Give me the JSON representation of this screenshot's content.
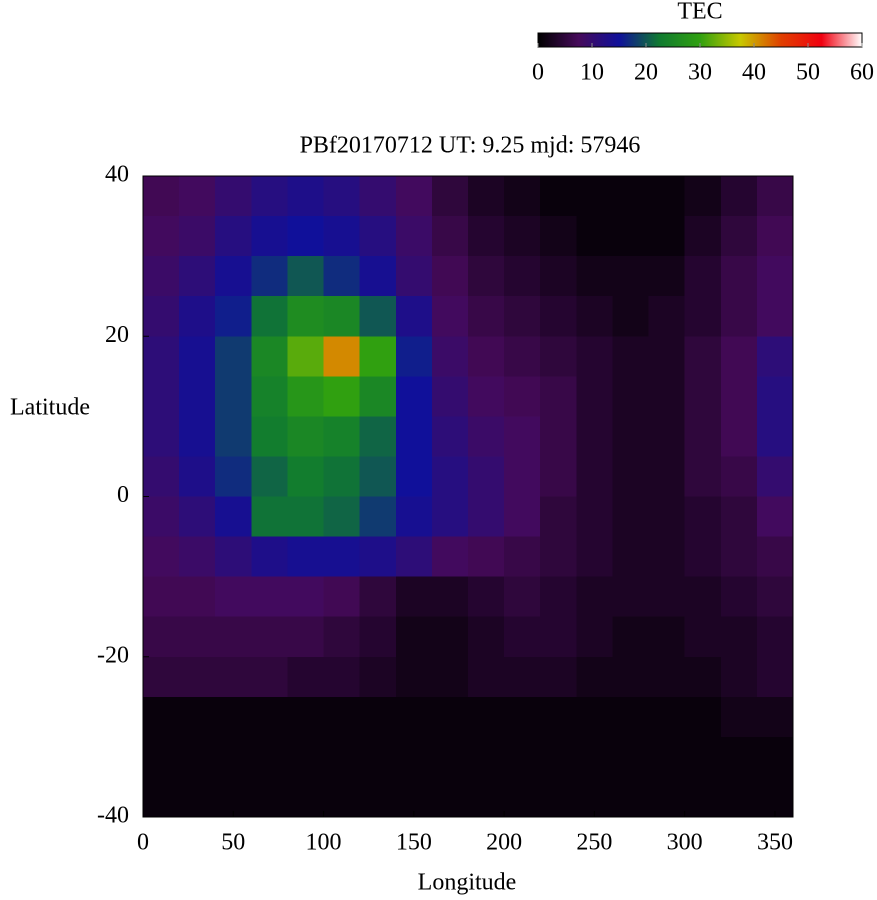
{
  "chart_data": {
    "type": "heatmap",
    "title": "PBf20170712  UT: 9.25  mjd: 57946",
    "xlabel": "Longitude",
    "ylabel": "Latitude",
    "x": [
      10,
      30,
      50,
      70,
      90,
      110,
      130,
      150,
      170,
      190,
      210,
      230,
      250,
      270,
      290,
      310,
      330,
      350
    ],
    "y": [
      37.5,
      32.5,
      27.5,
      22.5,
      17.5,
      12.5,
      7.5,
      2.5,
      -2.5,
      -7.5,
      -12.5,
      -17.5,
      -22.5,
      -27.5,
      -32.5,
      -37.5
    ],
    "values": [
      [
        7,
        8,
        10,
        12,
        13,
        12,
        10,
        8,
        5,
        3,
        2,
        1,
        1,
        1,
        1,
        2,
        4,
        6
      ],
      [
        8,
        9,
        12,
        14,
        15,
        14,
        12,
        9,
        6,
        4,
        3,
        2,
        1,
        1,
        1,
        3,
        5,
        7
      ],
      [
        9,
        11,
        14,
        17,
        20,
        17,
        14,
        10,
        7,
        5,
        4,
        3,
        2,
        2,
        2,
        4,
        6,
        8
      ],
      [
        10,
        13,
        16,
        22,
        26,
        25,
        20,
        13,
        8,
        6,
        5,
        4,
        3,
        2,
        3,
        4,
        6,
        8
      ],
      [
        11,
        14,
        18,
        25,
        32,
        41,
        30,
        16,
        9,
        7,
        6,
        5,
        4,
        3,
        3,
        5,
        7,
        11
      ],
      [
        11,
        14,
        18,
        24,
        28,
        30,
        25,
        15,
        10,
        8,
        7,
        6,
        4,
        3,
        3,
        5,
        7,
        12
      ],
      [
        11,
        14,
        18,
        23,
        25,
        24,
        21,
        15,
        11,
        9,
        8,
        6,
        4,
        3,
        3,
        5,
        7,
        12
      ],
      [
        10,
        13,
        17,
        21,
        23,
        22,
        20,
        15,
        12,
        10,
        8,
        6,
        4,
        3,
        3,
        5,
        6,
        10
      ],
      [
        9,
        11,
        14,
        22,
        22,
        21,
        18,
        14,
        12,
        10,
        8,
        5,
        4,
        3,
        3,
        4,
        5,
        8
      ],
      [
        8,
        9,
        11,
        13,
        14,
        14,
        13,
        11,
        8,
        7,
        6,
        5,
        4,
        3,
        3,
        4,
        5,
        6
      ],
      [
        7,
        7,
        8,
        8,
        8,
        7,
        5,
        3,
        3,
        4,
        5,
        4,
        3,
        3,
        3,
        3,
        4,
        5
      ],
      [
        6,
        6,
        6,
        6,
        6,
        5,
        4,
        2,
        2,
        3,
        4,
        4,
        3,
        2,
        2,
        3,
        3,
        4
      ],
      [
        5,
        5,
        5,
        5,
        4,
        4,
        3,
        2,
        2,
        3,
        3,
        3,
        2,
        2,
        2,
        2,
        3,
        4
      ],
      [
        1,
        1,
        1,
        1,
        1,
        1,
        1,
        1,
        1,
        1,
        1,
        1,
        1,
        1,
        1,
        1,
        2,
        2
      ],
      [
        1,
        1,
        1,
        1,
        1,
        1,
        1,
        1,
        1,
        1,
        1,
        1,
        1,
        1,
        1,
        1,
        1,
        1
      ],
      [
        1,
        1,
        1,
        1,
        1,
        1,
        1,
        1,
        1,
        1,
        1,
        1,
        1,
        1,
        1,
        1,
        1,
        1
      ]
    ],
    "xlim": [
      0,
      360
    ],
    "ylim": [
      -40,
      40
    ],
    "xticks": [
      0,
      50,
      100,
      150,
      200,
      250,
      300,
      350
    ],
    "yticks": [
      -40,
      -20,
      0,
      20,
      40
    ],
    "colorbar": {
      "label": "TEC",
      "lim": [
        0,
        60
      ],
      "ticks": [
        0,
        10,
        20,
        30,
        40,
        50,
        60
      ],
      "colormap": [
        "#000000",
        "#460a5a",
        "#10109a",
        "#107a30",
        "#30a010",
        "#c8c800",
        "#e04000",
        "#f00010",
        "#ffffff"
      ]
    }
  }
}
